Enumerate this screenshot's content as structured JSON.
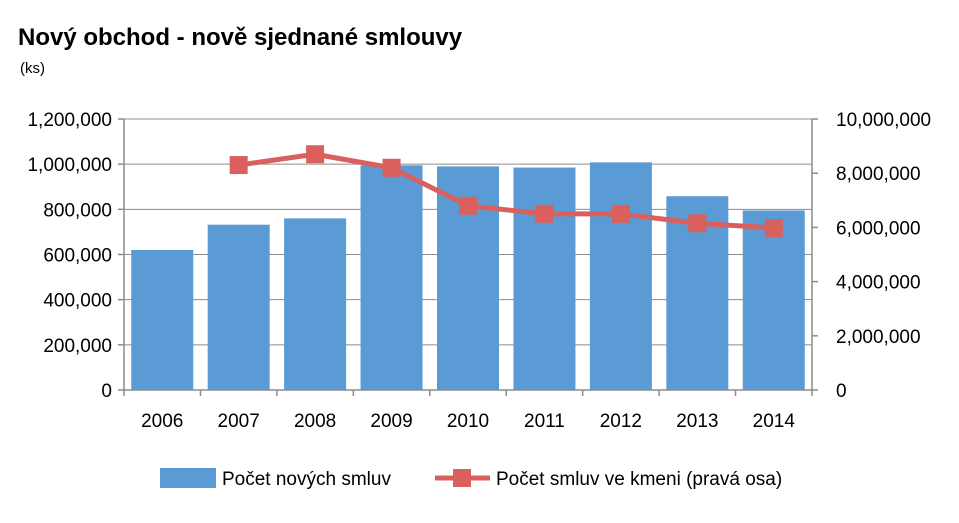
{
  "chart_data": {
    "type": "bar",
    "title": "Nový obchod - nově sjednané smlouvy",
    "subtitle": "(ks)",
    "categories": [
      "2006",
      "2007",
      "2008",
      "2009",
      "2010",
      "2011",
      "2012",
      "2013",
      "2014"
    ],
    "y_left": {
      "lim": [
        0,
        1200000
      ],
      "ticks": [
        0,
        200000,
        400000,
        600000,
        800000,
        1000000,
        1200000
      ],
      "tick_labels": [
        "0",
        "200,000",
        "400,000",
        "600,000",
        "800,000",
        "1,000,000",
        "1,200,000"
      ]
    },
    "y_right": {
      "lim": [
        0,
        10000000
      ],
      "ticks": [
        0,
        2000000,
        4000000,
        6000000,
        8000000,
        10000000
      ],
      "tick_labels": [
        "0",
        "2,000,000",
        "4,000,000",
        "6,000,000",
        "8,000,000",
        "10,000,000"
      ]
    },
    "grid": "horizontal",
    "legend_position": "bottom",
    "series": [
      {
        "name": "Počet nových smluv",
        "type": "bar",
        "axis": "left",
        "color": "#5b9bd5",
        "values": [
          620000,
          732000,
          760000,
          995000,
          990000,
          985000,
          1008000,
          858000,
          795000
        ]
      },
      {
        "name": "Počet smluv ve kmeni (pravá osa)",
        "type": "line",
        "axis": "right",
        "color": "#d9605d",
        "values": [
          null,
          8300000,
          8700000,
          8200000,
          6800000,
          6500000,
          6500000,
          6150000,
          5980000
        ]
      }
    ]
  }
}
